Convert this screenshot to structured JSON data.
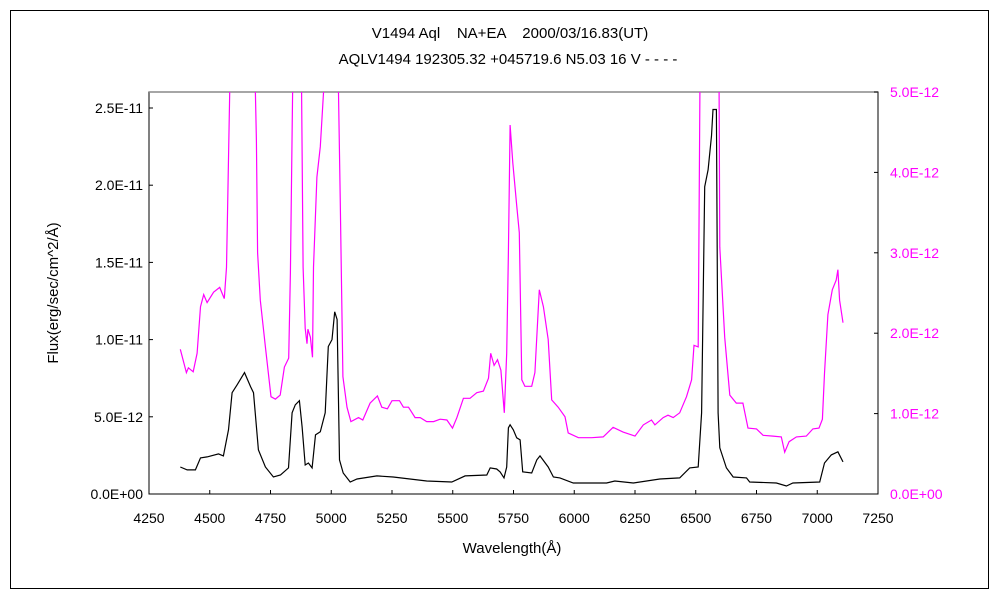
{
  "chart_data": {
    "type": "line",
    "title": "V1494 Aql    NA+EA    2000/03/16.83(UT)",
    "subtitle": "AQLV1494 192305.32 +045719.6 N5.03 16 V - - - -",
    "xlabel": "Wavelength(Å)",
    "ylabel": "Flux(erg/sec/cm^2/Å)",
    "xlim": [
      4250,
      7250
    ],
    "ylim": [
      0,
      2.6e-11
    ],
    "y2lim": [
      0,
      5e-12
    ],
    "x_ticks": [
      "4250",
      "4500",
      "4750",
      "5000",
      "5250",
      "5500",
      "5750",
      "6000",
      "6250",
      "6500",
      "6750",
      "7000",
      "7250"
    ],
    "y_ticks": [
      "0.0E+00",
      "5.0E-12",
      "1.0E-11",
      "1.5E-11",
      "2.0E-11",
      "2.5E-11"
    ],
    "y2_ticks": [
      "0.0E+00",
      "1.0E-12",
      "2.0E-12",
      "3.0E-12",
      "4.0E-12",
      "5.0E-12"
    ],
    "grid": false,
    "series": [
      {
        "axis": "left",
        "color": "#000000",
        "x": [
          4379,
          4407,
          4441,
          4462,
          4489,
          4536,
          4556,
          4577,
          4592,
          4613,
          4643,
          4668,
          4680,
          4700,
          4729,
          4762,
          4791,
          4824,
          4839,
          4852,
          4869,
          4880,
          4893,
          4906,
          4921,
          4935,
          4955,
          4975,
          4988,
          5003,
          5014,
          5024,
          5034,
          5049,
          5078,
          5106,
          5188,
          5255,
          5393,
          5496,
          5551,
          5640,
          5654,
          5681,
          5695,
          5711,
          5722,
          5729,
          5736,
          5749,
          5763,
          5777,
          5788,
          5825,
          5846,
          5859,
          5893,
          5914,
          5941,
          5996,
          6133,
          6167,
          6243,
          6352,
          6434,
          6475,
          6510,
          6524,
          6537,
          6551,
          6565,
          6571,
          6585,
          6592,
          6599,
          6626,
          6654,
          6709,
          6722,
          6832,
          6873,
          6900,
          7010,
          7030,
          7058,
          7085,
          7106
        ],
        "y": [
          1.75e-12,
          1.56e-12,
          1.56e-12,
          2.34e-12,
          2.4e-12,
          2.6e-12,
          2.47e-12,
          4.16e-12,
          6.56e-12,
          7.08e-12,
          7.86e-12,
          6.95e-12,
          6.56e-12,
          2.86e-12,
          1.75e-12,
          1.1e-12,
          1.23e-12,
          1.69e-12,
          5.26e-12,
          5.78e-12,
          6.04e-12,
          4.35e-12,
          1.88e-12,
          2.01e-12,
          1.69e-12,
          3.83e-12,
          4.03e-12,
          5.26e-12,
          9.55e-12,
          1e-11,
          1.18e-11,
          1.13e-11,
          2.21e-12,
          1.36e-12,
          7.8e-13,
          9.7e-13,
          1.17e-12,
          1.1e-12,
          8.4e-13,
          7.8e-13,
          1.17e-12,
          1.23e-12,
          1.69e-12,
          1.62e-12,
          1.43e-12,
          1.04e-12,
          1.75e-12,
          4.29e-12,
          4.48e-12,
          4.16e-12,
          3.64e-12,
          3.51e-12,
          1.43e-12,
          1.36e-12,
          2.21e-12,
          2.47e-12,
          1.75e-12,
          1.1e-12,
          1.04e-12,
          7.1e-13,
          7.1e-13,
          8.4e-13,
          7.1e-13,
          9.7e-13,
          1.04e-12,
          1.69e-12,
          1.75e-12,
          5.26e-12,
          1.99e-11,
          2.1e-11,
          2.32e-11,
          2.49e-11,
          2.49e-11,
          5.26e-12,
          2.99e-12,
          1.69e-12,
          1.1e-12,
          1.04e-12,
          7.8e-13,
          7.1e-13,
          5.2e-13,
          7.1e-13,
          7.8e-13,
          2.01e-12,
          2.53e-12,
          2.73e-12,
          2.08e-12
        ]
      },
      {
        "axis": "right",
        "color": "#ff00ff",
        "x": [
          4379,
          4404,
          4412,
          4432,
          4448,
          4462,
          4475,
          4489,
          4516,
          4541,
          4560,
          4569,
          4574,
          4582,
          4590,
          4680,
          4688,
          4692,
          4697,
          4708,
          4729,
          4752,
          4770,
          4790,
          4807,
          4825,
          4832,
          4841,
          4845,
          4860,
          4878,
          4884,
          4893,
          4900,
          4904,
          4914,
          4923,
          4927,
          4941,
          4955,
          4968,
          4975,
          5020,
          5030,
          5037,
          5048,
          5065,
          5081,
          5112,
          5130,
          5160,
          5190,
          5208,
          5231,
          5250,
          5281,
          5297,
          5318,
          5345,
          5366,
          5393,
          5421,
          5448,
          5476,
          5499,
          5517,
          5544,
          5571,
          5599,
          5626,
          5647,
          5656,
          5670,
          5684,
          5698,
          5712,
          5722,
          5729,
          5736,
          5747,
          5763,
          5774,
          5784,
          5797,
          5825,
          5838,
          5856,
          5873,
          5893,
          5907,
          5934,
          5962,
          5975,
          6017,
          6072,
          6119,
          6160,
          6201,
          6250,
          6284,
          6318,
          6332,
          6366,
          6386,
          6407,
          6434,
          6462,
          6483,
          6493,
          6510,
          6517,
          6525,
          6585,
          6596,
          6599,
          6619,
          6640,
          6667,
          6694,
          6715,
          6750,
          6777,
          6818,
          6852,
          6866,
          6884,
          6914,
          6955,
          6982,
          7007,
          7021,
          7030,
          7044,
          7062,
          7078,
          7085,
          7092,
          7106
        ],
        "y": [
          1.8e-12,
          1.51e-12,
          1.57e-12,
          1.52e-12,
          1.75e-12,
          2.33e-12,
          2.48e-12,
          2.38e-12,
          2.51e-12,
          2.57e-12,
          2.43e-12,
          2.82e-12,
          3.62e-12,
          4.99e-12,
          5.6e-12,
          5.6e-12,
          4.99e-12,
          4.4e-12,
          3e-12,
          2.41e-12,
          1.83e-12,
          1.21e-12,
          1.18e-12,
          1.23e-12,
          1.58e-12,
          1.69e-12,
          2.75e-12,
          4.99e-12,
          5.6e-12,
          5.6e-12,
          4.99e-12,
          2.82e-12,
          2.06e-12,
          1.87e-12,
          2.05e-12,
          1.95e-12,
          1.7e-12,
          2.82e-12,
          3.94e-12,
          4.32e-12,
          4.99e-12,
          5.6e-12,
          5.6e-12,
          4.99e-12,
          3.69e-12,
          1.46e-12,
          1.08e-12,
          9e-13,
          9.5e-13,
          9.2e-13,
          1.13e-12,
          1.22e-12,
          1.08e-12,
          1.06e-12,
          1.16e-12,
          1.16e-12,
          1.08e-12,
          1.08e-12,
          9.5e-13,
          9.5e-13,
          9e-13,
          9e-13,
          9.3e-13,
          9.2e-13,
          8.2e-13,
          9.5e-13,
          1.19e-12,
          1.19e-12,
          1.26e-12,
          1.28e-12,
          1.44e-12,
          1.75e-12,
          1.6e-12,
          1.67e-12,
          1.54e-12,
          1.01e-12,
          1.75e-12,
          3e-12,
          4.59e-12,
          4.12e-12,
          3.59e-12,
          3.25e-12,
          1.42e-12,
          1.34e-12,
          1.34e-12,
          1.51e-12,
          2.54e-12,
          2.33e-12,
          1.92e-12,
          1.17e-12,
          1.08e-12,
          9.6e-13,
          7.6e-13,
          7e-13,
          7e-13,
          7.1e-13,
          8.3e-13,
          7.7e-13,
          7.2e-13,
          8.6e-13,
          9.2e-13,
          8.6e-13,
          9.5e-13,
          9.8e-13,
          9.5e-13,
          1.01e-12,
          1.21e-12,
          1.42e-12,
          1.85e-12,
          1.83e-12,
          4.99e-12,
          5.6e-12,
          5.6e-12,
          4.99e-12,
          3.07e-12,
          1.95e-12,
          1.23e-12,
          1.13e-12,
          1.13e-12,
          8.2e-13,
          8.1e-13,
          7.3e-13,
          7.2e-13,
          7.1e-13,
          5.2e-13,
          6.5e-13,
          7.1e-13,
          7.2e-13,
          8.1e-13,
          8.2e-13,
          9.3e-13,
          1.5e-12,
          2.23e-12,
          2.54e-12,
          2.66e-12,
          2.79e-12,
          2.41e-12,
          2.13e-12
        ]
      }
    ]
  }
}
